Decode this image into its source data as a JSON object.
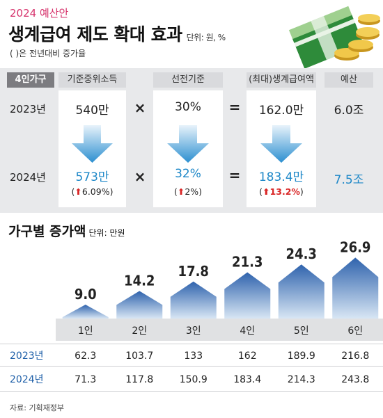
{
  "header": {
    "kicker": "2024 예산안",
    "title": "생계급여 제도 확대 효과",
    "unit": "단위: 원, %",
    "note": "( )은 전년대비 증가율"
  },
  "table": {
    "tag": "4인가구",
    "columns": [
      "기준중위소득",
      "선전기준",
      "(최대)생계급여액",
      "예산"
    ],
    "rows": [
      {
        "year": "2023년",
        "median": "540만",
        "rate": "30%",
        "benefit": "162.0만",
        "budget": "6.0조"
      },
      {
        "year": "2024년",
        "median": "573만",
        "rate": "32%",
        "benefit": "183.4만",
        "budget": "7.5조"
      }
    ],
    "changes": {
      "median": "6.09%",
      "rate": "2%",
      "benefit": "13.2%"
    },
    "ops": {
      "times": "×",
      "equals": "="
    }
  },
  "section2": {
    "title": "가구별 증가액",
    "unit": "단위: 만원"
  },
  "chart_data": {
    "type": "bar",
    "categories": [
      "1인",
      "2인",
      "3인",
      "4인",
      "5인",
      "6인"
    ],
    "values": [
      9.0,
      14.2,
      17.8,
      21.3,
      24.3,
      26.9
    ],
    "value_labels": [
      "9.0",
      "14.2",
      "17.8",
      "21.3",
      "24.3",
      "26.9"
    ],
    "title": "가구별 증가액",
    "unit": "단위: 만원",
    "rows": [
      {
        "label": "2023년",
        "values": [
          "62.3",
          "103.7",
          "133",
          "162",
          "189.9",
          "216.8"
        ]
      },
      {
        "label": "2024년",
        "values": [
          "71.3",
          "117.8",
          "150.9",
          "183.4",
          "214.3",
          "243.8"
        ]
      }
    ]
  },
  "source": "자료: 기획재정부",
  "colors": {
    "accent": "#1e88c8",
    "up": "#d92525",
    "kicker": "#d6336c"
  }
}
